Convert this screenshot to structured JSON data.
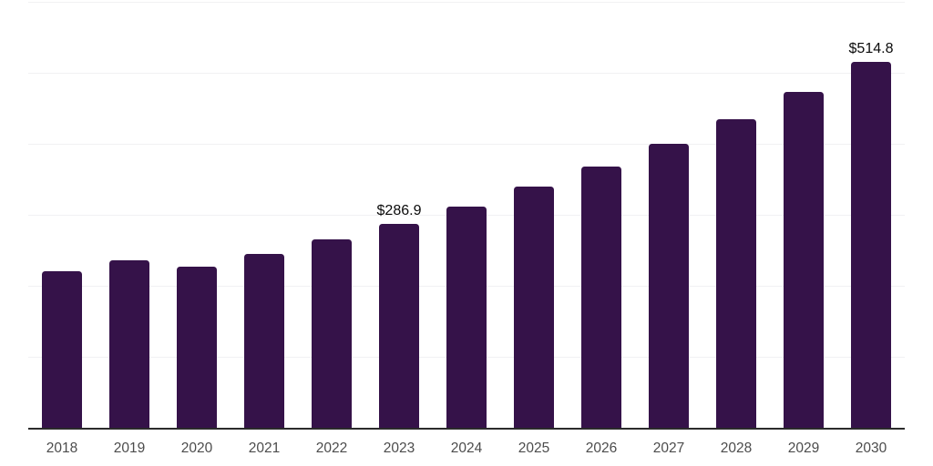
{
  "chart_data": {
    "type": "bar",
    "title": "",
    "xlabel": "",
    "ylabel": "",
    "categories": [
      "2018",
      "2019",
      "2020",
      "2021",
      "2022",
      "2023",
      "2024",
      "2025",
      "2026",
      "2027",
      "2028",
      "2029",
      "2030"
    ],
    "values": [
      220,
      236,
      227,
      245,
      265.5,
      286.9,
      311.5,
      340,
      368,
      400,
      434.5,
      473,
      514.8
    ],
    "data_labels": {
      "2023": "$286.9",
      "2030": "$514.8"
    },
    "ylim": [
      0,
      600
    ],
    "gridline_step": 100,
    "grid": true,
    "legend": false,
    "colors": {
      "bar": "#351249",
      "gridline": "#f1f1f3",
      "axis": "#2b2b2b",
      "tick_label": "#4c4c4c",
      "value_label": "#0b0b0b",
      "background": "#ffffff"
    }
  }
}
